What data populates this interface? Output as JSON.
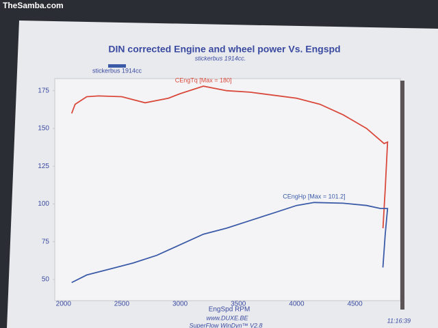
{
  "watermark": "TheSamba.com",
  "chart_data": {
    "type": "line",
    "title": "DIN corrected Engine and wheel power Vs. Engspd",
    "subtitle": "stickerbus 1914cc.",
    "legend_label": "stickerbus 1914cc",
    "legend_color": "#3a5aa8",
    "x_label": "EngSpd  RPM",
    "xlim": [
      1925,
      4890
    ],
    "xticks": [
      2000,
      2500,
      3000,
      3500,
      4000,
      4500
    ],
    "ylim": [
      36,
      183
    ],
    "yticks": [
      50,
      75,
      100,
      125,
      150,
      175
    ],
    "grid": false,
    "series": [
      {
        "name": "CEngTq [Max = 180]",
        "color": "#d9483a",
        "x": [
          2070,
          2100,
          2200,
          2300,
          2500,
          2700,
          2900,
          3000,
          3200,
          3400,
          3600,
          3800,
          4000,
          4200,
          4400,
          4600,
          4750,
          4780,
          4760,
          4741
        ],
        "values": [
          160,
          166,
          171,
          171.5,
          171,
          167,
          170,
          173,
          178,
          175,
          174,
          172,
          170,
          166,
          159,
          150,
          140,
          141,
          110,
          84
        ]
      },
      {
        "name": "CEngHp [Max = 101.2]",
        "color": "#3a5aa8",
        "x": [
          2070,
          2200,
          2400,
          2600,
          2800,
          3000,
          3200,
          3400,
          3600,
          3800,
          4000,
          4150,
          4400,
          4600,
          4720,
          4780,
          4760,
          4740
        ],
        "values": [
          48,
          53,
          57,
          61,
          66,
          73,
          80,
          84,
          89,
          94,
          99,
          101,
          100.5,
          99,
          97,
          97,
          80,
          58
        ]
      }
    ]
  },
  "footer": {
    "url": "www.DUXE.BE",
    "software": "SuperFlow WinDyn™ V2.8",
    "time": "11:16:39"
  }
}
